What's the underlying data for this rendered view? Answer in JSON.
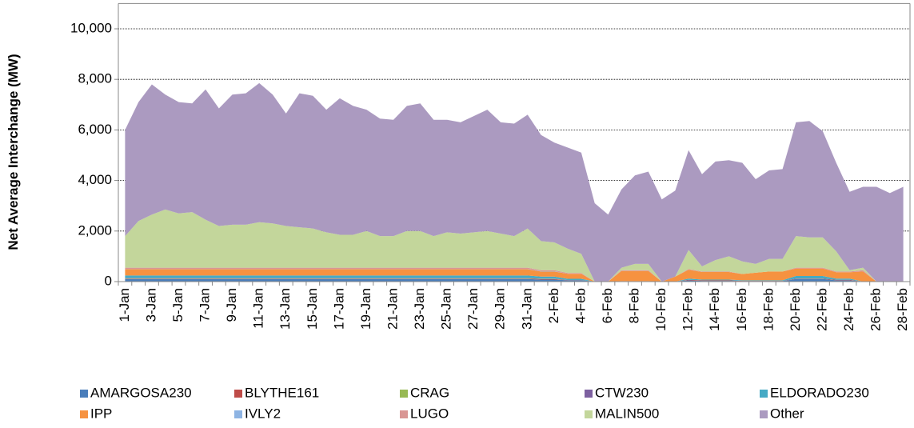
{
  "chart_data": {
    "type": "stacked-area",
    "y_label": "Net  Average  Interchange  (MW)",
    "categories": [
      "1-Jan",
      null,
      "3-Jan",
      null,
      "5-Jan",
      null,
      "7-Jan",
      null,
      "9-Jan",
      null,
      "11-Jan",
      null,
      "13-Jan",
      null,
      "15-Jan",
      null,
      "17-Jan",
      null,
      "19-Jan",
      null,
      "21-Jan",
      null,
      "23-Jan",
      null,
      "25-Jan",
      null,
      "27-Jan",
      null,
      "29-Jan",
      null,
      "31-Jan",
      null,
      "2-Feb",
      null,
      "4-Feb",
      null,
      "6-Feb",
      null,
      "8-Feb",
      null,
      "10-Feb",
      null,
      "12-Feb",
      null,
      "14-Feb",
      null,
      "16-Feb",
      null,
      "18-Feb",
      null,
      "20-Feb",
      null,
      "22-Feb",
      null,
      "24-Feb",
      null,
      "26-Feb",
      null,
      "28-Feb"
    ],
    "ylim": [
      0,
      11000
    ],
    "yticks": [
      0,
      {
        "value": 2000,
        "label": "2,000"
      },
      {
        "value": 4000,
        "label": "4,000"
      },
      {
        "value": 6000,
        "label": "6,000"
      },
      {
        "value": 8000,
        "label": "8,000"
      },
      {
        "value": 10000,
        "label": "10,000"
      }
    ],
    "grid": true,
    "legend": "bottom",
    "series": [
      {
        "name": "AMARGOSA230",
        "color": "#4a7ebb",
        "values": [
          100,
          100,
          100,
          100,
          100,
          100,
          100,
          100,
          100,
          100,
          100,
          100,
          100,
          100,
          100,
          100,
          100,
          100,
          100,
          100,
          100,
          100,
          100,
          100,
          100,
          100,
          100,
          100,
          100,
          100,
          100,
          80,
          80,
          50,
          50,
          0,
          0,
          0,
          0,
          0,
          0,
          0,
          50,
          30,
          30,
          30,
          20,
          20,
          20,
          20,
          100,
          100,
          100,
          50,
          50,
          0,
          0,
          0,
          0
        ]
      },
      {
        "name": "BLYTHE161",
        "color": "#be4b48",
        "values": [
          20,
          20,
          20,
          20,
          20,
          20,
          20,
          20,
          20,
          20,
          20,
          20,
          20,
          20,
          20,
          20,
          20,
          20,
          20,
          20,
          20,
          20,
          20,
          20,
          20,
          20,
          20,
          20,
          20,
          20,
          20,
          20,
          20,
          10,
          10,
          0,
          0,
          20,
          20,
          20,
          0,
          0,
          20,
          20,
          20,
          20,
          10,
          10,
          10,
          10,
          20,
          20,
          20,
          20,
          20,
          0,
          0,
          0,
          0
        ]
      },
      {
        "name": "CRAG",
        "color": "#98b954",
        "values": [
          10,
          10,
          10,
          10,
          10,
          10,
          10,
          10,
          10,
          10,
          10,
          10,
          10,
          10,
          10,
          10,
          10,
          10,
          10,
          10,
          10,
          10,
          10,
          10,
          10,
          10,
          10,
          10,
          10,
          10,
          10,
          10,
          10,
          0,
          0,
          0,
          0,
          0,
          0,
          0,
          0,
          0,
          0,
          0,
          0,
          0,
          0,
          0,
          0,
          0,
          0,
          0,
          0,
          0,
          0,
          0,
          0,
          0,
          0
        ]
      },
      {
        "name": "CTW230",
        "color": "#7d60a0",
        "values": [
          10,
          10,
          10,
          10,
          10,
          10,
          10,
          10,
          10,
          10,
          10,
          10,
          10,
          10,
          10,
          10,
          10,
          10,
          10,
          10,
          10,
          10,
          10,
          10,
          10,
          10,
          10,
          10,
          10,
          10,
          10,
          10,
          10,
          0,
          0,
          0,
          0,
          0,
          0,
          0,
          0,
          0,
          0,
          0,
          0,
          0,
          0,
          0,
          0,
          0,
          0,
          0,
          0,
          0,
          0,
          0,
          0,
          0,
          0
        ]
      },
      {
        "name": "ELDORADO230",
        "color": "#46aac5",
        "values": [
          100,
          100,
          100,
          100,
          100,
          100,
          100,
          100,
          100,
          100,
          100,
          100,
          100,
          100,
          100,
          100,
          100,
          100,
          100,
          100,
          100,
          100,
          100,
          100,
          100,
          100,
          100,
          100,
          100,
          100,
          100,
          80,
          80,
          50,
          50,
          0,
          0,
          0,
          0,
          0,
          0,
          0,
          50,
          30,
          30,
          30,
          20,
          20,
          20,
          20,
          100,
          100,
          100,
          50,
          50,
          0,
          0,
          0,
          0
        ]
      },
      {
        "name": "IPP",
        "color": "#f69240",
        "values": [
          250,
          250,
          250,
          250,
          250,
          250,
          250,
          250,
          250,
          250,
          250,
          250,
          250,
          250,
          250,
          250,
          250,
          250,
          250,
          250,
          250,
          250,
          250,
          250,
          250,
          250,
          250,
          250,
          250,
          250,
          250,
          200,
          200,
          200,
          200,
          0,
          0,
          400,
          400,
          400,
          0,
          200,
          350,
          300,
          300,
          300,
          250,
          300,
          350,
          350,
          300,
          300,
          300,
          250,
          250,
          400,
          0,
          0,
          0
        ]
      },
      {
        "name": "IVLY2",
        "color": "#8eb4e3",
        "values": [
          10,
          10,
          10,
          10,
          10,
          10,
          10,
          10,
          10,
          10,
          10,
          10,
          10,
          10,
          10,
          10,
          10,
          10,
          10,
          10,
          10,
          10,
          10,
          10,
          10,
          10,
          10,
          10,
          10,
          10,
          10,
          10,
          10,
          0,
          0,
          0,
          0,
          0,
          0,
          0,
          0,
          0,
          0,
          0,
          0,
          0,
          0,
          0,
          0,
          0,
          0,
          0,
          0,
          0,
          0,
          0,
          0,
          0,
          0
        ]
      },
      {
        "name": "LUGO",
        "color": "#d99694",
        "values": [
          50,
          50,
          50,
          50,
          50,
          50,
          50,
          50,
          50,
          50,
          50,
          50,
          50,
          50,
          50,
          50,
          50,
          50,
          50,
          50,
          50,
          50,
          50,
          50,
          50,
          50,
          50,
          50,
          50,
          50,
          50,
          40,
          40,
          30,
          30,
          0,
          0,
          30,
          30,
          30,
          0,
          0,
          30,
          20,
          20,
          20,
          0,
          0,
          0,
          0,
          30,
          30,
          30,
          30,
          30,
          50,
          0,
          0,
          0
        ]
      },
      {
        "name": "MALIN500",
        "color": "#c3d69b",
        "values": [
          1250,
          1850,
          2100,
          2300,
          2150,
          2200,
          1900,
          1650,
          1700,
          1700,
          1800,
          1750,
          1650,
          1600,
          1550,
          1400,
          1300,
          1300,
          1450,
          1250,
          1250,
          1450,
          1450,
          1250,
          1400,
          1350,
          1400,
          1450,
          1350,
          1250,
          1550,
          1150,
          1100,
          960,
          760,
          0,
          0,
          100,
          250,
          250,
          0,
          0,
          750,
          200,
          450,
          600,
          500,
          350,
          500,
          500,
          1250,
          1200,
          1200,
          800,
          50,
          100,
          0,
          0,
          0
        ]
      },
      {
        "name": "Other",
        "color": "#ab9ac0",
        "values": [
          4200,
          4700,
          5150,
          4550,
          4400,
          4300,
          5150,
          4650,
          5150,
          5200,
          5500,
          5100,
          4450,
          5300,
          5250,
          4850,
          5400,
          5100,
          4800,
          4650,
          4600,
          4950,
          5050,
          4600,
          4450,
          4400,
          4600,
          4800,
          4400,
          4450,
          4500,
          4200,
          3950,
          4000,
          4000,
          3100,
          2650,
          3100,
          3500,
          3650,
          3250,
          3400,
          3950,
          3650,
          3900,
          3800,
          3900,
          3350,
          3500,
          3550,
          4500,
          4600,
          4200,
          3500,
          3100,
          3200,
          3750,
          3500,
          3750
        ]
      }
    ]
  }
}
